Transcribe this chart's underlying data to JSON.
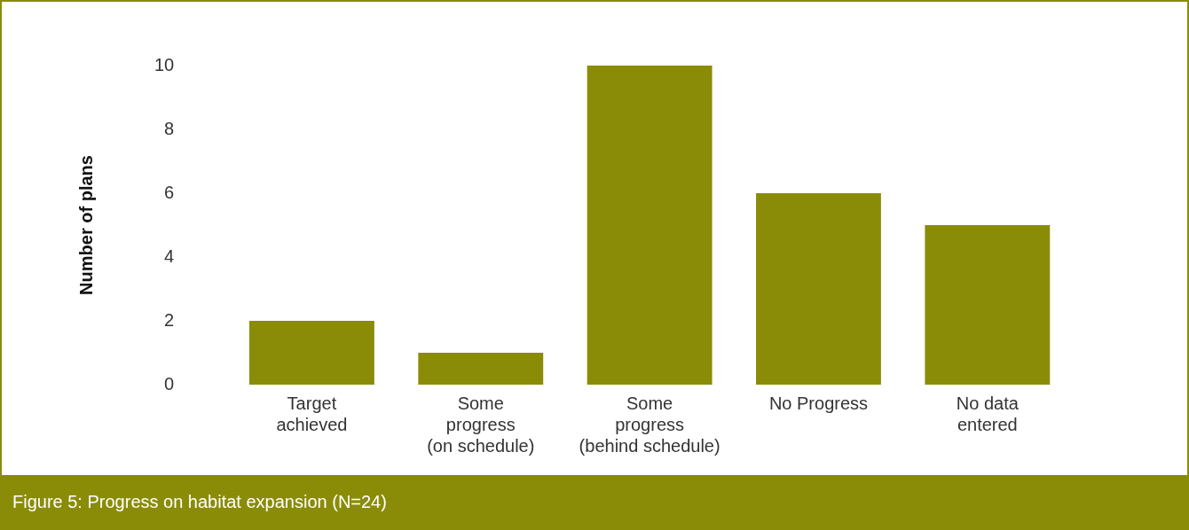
{
  "chart_data": {
    "type": "bar",
    "title": "Figure 5: Progress on habitat expansion (N=24)",
    "ylabel": "Number of plans",
    "categories": [
      "Target\nachieved",
      "Some\nprogress\n(on schedule)",
      "Some\nprogress\n(behind schedule)",
      "No Progress",
      "No data\nentered"
    ],
    "values": [
      2,
      1,
      10,
      6,
      5
    ],
    "color": "#8a8c08",
    "ylim": [
      0,
      10
    ],
    "yticks": [
      0,
      2,
      4,
      6,
      8,
      10
    ],
    "grid": false,
    "legend": false
  }
}
